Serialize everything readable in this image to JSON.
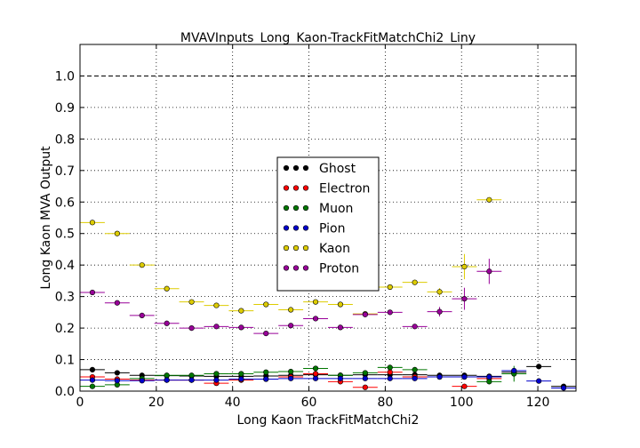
{
  "chart_data": {
    "type": "scatter",
    "title": "MVAVInputs_Long_Kaon-TrackFitMatchChi2_Liny",
    "xlabel": "Long Kaon TrackFitMatchChi2",
    "ylabel": "Long Kaon MVA Output",
    "xlim": [
      0,
      130
    ],
    "ylim": [
      0.0,
      1.1
    ],
    "xticks": [
      0,
      20,
      40,
      60,
      80,
      100,
      120
    ],
    "xtick_labels": [
      "0",
      "20",
      "40",
      "60",
      "80",
      "100",
      "120"
    ],
    "yticks": [
      0.0,
      0.1,
      0.2,
      0.3,
      0.4,
      0.5,
      0.6,
      0.7,
      0.8,
      0.9,
      1.0
    ],
    "ytick_labels": [
      "0.0",
      "0.1",
      "0.2",
      "0.3",
      "0.4",
      "0.5",
      "0.6",
      "0.7",
      "0.8",
      "0.9",
      "1.0"
    ],
    "grid": true,
    "reference_line": 1.0,
    "legend_position": "center",
    "bin_half_width": 3.25,
    "series": [
      {
        "name": "Ghost",
        "color": "#000000",
        "x": [
          3.25,
          9.75,
          16.25,
          22.75,
          29.25,
          35.75,
          42.25,
          48.75,
          55.25,
          61.75,
          68.25,
          74.75,
          81.25,
          87.75,
          94.25,
          100.75,
          107.25,
          113.75,
          120.25,
          126.75
        ],
        "y": [
          0.068,
          0.058,
          0.05,
          0.049,
          0.048,
          0.047,
          0.047,
          0.048,
          0.05,
          0.052,
          0.05,
          0.052,
          0.052,
          0.052,
          0.05,
          0.05,
          0.047,
          0.06,
          0.078,
          0.015
        ],
        "yerr": [
          0.003,
          0.003,
          0.003,
          0.003,
          0.003,
          0.003,
          0.003,
          0.003,
          0.003,
          0.003,
          0.003,
          0.003,
          0.003,
          0.003,
          0.004,
          0.004,
          0.005,
          0.005,
          0.005,
          0.004
        ]
      },
      {
        "name": "Electron",
        "color": "#ff0000",
        "x": [
          3.25,
          9.75,
          16.25,
          22.75,
          29.25,
          35.75,
          42.25,
          48.75,
          55.25,
          61.75,
          68.25,
          74.75,
          81.25,
          87.75,
          94.25,
          100.75,
          107.25
        ],
        "y": [
          0.045,
          0.038,
          0.035,
          0.035,
          0.035,
          0.025,
          0.035,
          0.038,
          0.045,
          0.055,
          0.03,
          0.012,
          0.06,
          0.045,
          0.045,
          0.015,
          0.04
        ],
        "yerr": [
          0.004,
          0.004,
          0.004,
          0.004,
          0.004,
          0.004,
          0.004,
          0.004,
          0.004,
          0.004,
          0.004,
          0.004,
          0.004,
          0.004,
          0.004,
          0.004,
          0.004
        ]
      },
      {
        "name": "Muon",
        "color": "#007700",
        "x": [
          3.25,
          9.75,
          16.25,
          22.75,
          29.25,
          35.75,
          42.25,
          48.75,
          55.25,
          61.75,
          68.25,
          74.75,
          81.25,
          87.75,
          94.25,
          100.75,
          107.25,
          113.75
        ],
        "y": [
          0.015,
          0.02,
          0.04,
          0.05,
          0.05,
          0.055,
          0.055,
          0.06,
          0.062,
          0.072,
          0.05,
          0.058,
          0.075,
          0.068,
          0.045,
          0.045,
          0.03,
          0.055
        ],
        "yerr": [
          0.003,
          0.003,
          0.003,
          0.003,
          0.003,
          0.003,
          0.003,
          0.003,
          0.004,
          0.005,
          0.004,
          0.004,
          0.005,
          0.005,
          0.005,
          0.005,
          0.006,
          0.025
        ]
      },
      {
        "name": "Pion",
        "color": "#0000cc",
        "x": [
          3.25,
          9.75,
          16.25,
          22.75,
          29.25,
          35.75,
          42.25,
          48.75,
          55.25,
          61.75,
          68.25,
          74.75,
          81.25,
          87.75,
          94.25,
          100.75,
          107.25,
          113.75,
          120.25,
          126.75
        ],
        "y": [
          0.035,
          0.033,
          0.033,
          0.035,
          0.035,
          0.035,
          0.038,
          0.038,
          0.04,
          0.04,
          0.04,
          0.04,
          0.04,
          0.04,
          0.045,
          0.045,
          0.045,
          0.065,
          0.032,
          0.01
        ],
        "yerr": [
          0.002,
          0.002,
          0.002,
          0.002,
          0.002,
          0.002,
          0.002,
          0.002,
          0.002,
          0.002,
          0.002,
          0.002,
          0.002,
          0.002,
          0.003,
          0.003,
          0.004,
          0.004,
          0.004,
          0.003
        ]
      },
      {
        "name": "Kaon",
        "color": "#ddcc00",
        "x": [
          3.25,
          9.75,
          16.25,
          22.75,
          29.25,
          35.75,
          42.25,
          48.75,
          55.25,
          61.75,
          68.25,
          74.75,
          81.25,
          87.75,
          94.25,
          100.75,
          107.25
        ],
        "y": [
          0.535,
          0.5,
          0.4,
          0.325,
          0.283,
          0.272,
          0.255,
          0.275,
          0.258,
          0.283,
          0.275,
          0.245,
          0.33,
          0.345,
          0.315,
          0.395,
          0.607
        ],
        "yerr": [
          0.003,
          0.003,
          0.003,
          0.003,
          0.003,
          0.003,
          0.003,
          0.003,
          0.003,
          0.004,
          0.004,
          0.005,
          0.006,
          0.008,
          0.012,
          0.04,
          0.005
        ]
      },
      {
        "name": "Proton",
        "color": "#990099",
        "x": [
          3.25,
          9.75,
          16.25,
          22.75,
          29.25,
          35.75,
          42.25,
          48.75,
          55.25,
          61.75,
          68.25,
          74.75,
          81.25,
          87.75,
          94.25,
          100.75,
          107.25
        ],
        "y": [
          0.313,
          0.28,
          0.24,
          0.215,
          0.2,
          0.205,
          0.202,
          0.183,
          0.208,
          0.23,
          0.202,
          0.243,
          0.25,
          0.205,
          0.252,
          0.293,
          0.38
        ],
        "yerr": [
          0.003,
          0.003,
          0.003,
          0.003,
          0.003,
          0.003,
          0.003,
          0.003,
          0.004,
          0.005,
          0.005,
          0.006,
          0.007,
          0.008,
          0.015,
          0.035,
          0.04
        ]
      }
    ]
  }
}
